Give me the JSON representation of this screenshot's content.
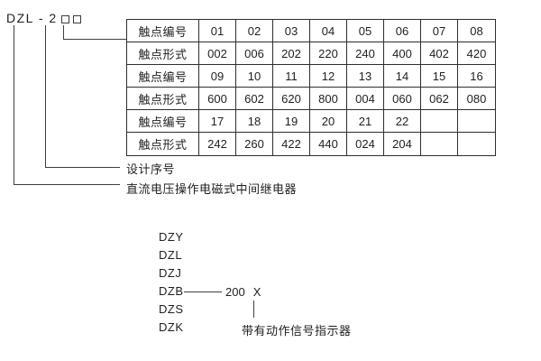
{
  "title": {
    "model_prefix": "DZL - 2"
  },
  "spec_table": {
    "rows": [
      {
        "header": "触点编号",
        "cells": [
          "01",
          "02",
          "03",
          "04",
          "05",
          "06",
          "07",
          "08"
        ]
      },
      {
        "header": "触点形式",
        "cells": [
          "002",
          "006",
          "202",
          "220",
          "240",
          "400",
          "402",
          "420"
        ]
      },
      {
        "header": "触点编号",
        "cells": [
          "09",
          "10",
          "11",
          "12",
          "13",
          "14",
          "15",
          "16"
        ]
      },
      {
        "header": "触点形式",
        "cells": [
          "600",
          "602",
          "620",
          "800",
          "004",
          "060",
          "062",
          "080"
        ]
      },
      {
        "header": "触点编号",
        "cells": [
          "17",
          "18",
          "19",
          "20",
          "21",
          "22",
          "",
          ""
        ]
      },
      {
        "header": "触点形式",
        "cells": [
          "242",
          "260",
          "422",
          "440",
          "024",
          "204",
          "",
          ""
        ]
      }
    ]
  },
  "callouts": {
    "design_serial_label": "设计序号",
    "relay_type_label": "直流电压操作电磁式中间继电器"
  },
  "series_list": {
    "items": [
      "DZY",
      "DZL",
      "DZJ",
      "DZB",
      "DZS",
      "DZK"
    ],
    "dzb_number": "200",
    "dzb_variant": "X",
    "indicator_label": "带有动作信号指示器"
  },
  "colors": {
    "ink": "#1f1f1f",
    "line": "#3f3f3f",
    "background": "#ffffff"
  }
}
